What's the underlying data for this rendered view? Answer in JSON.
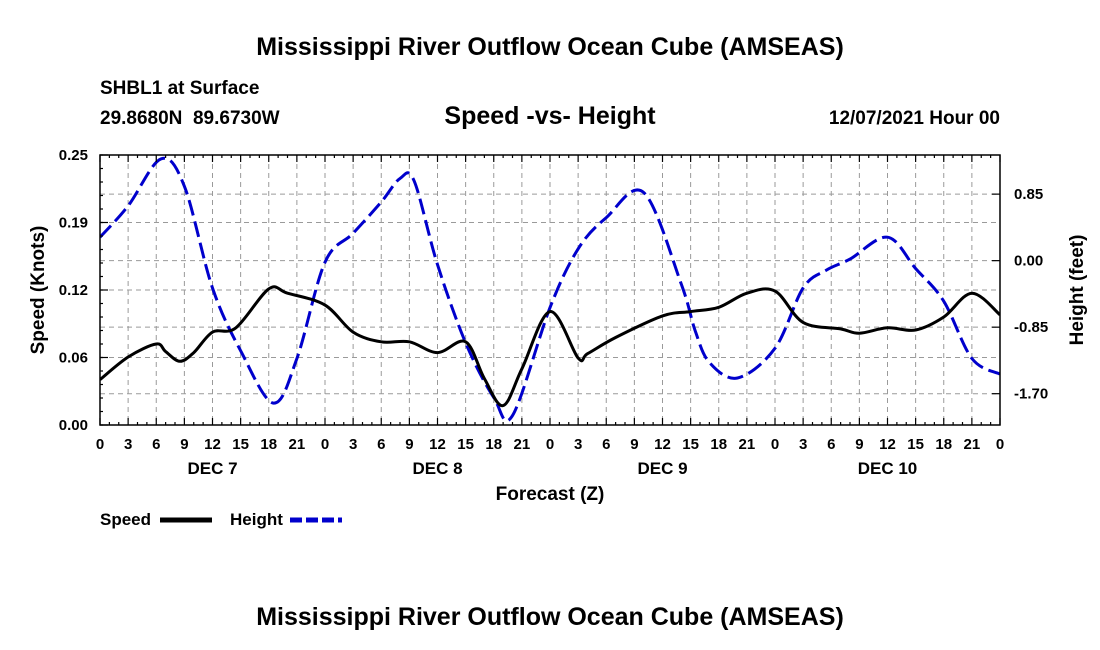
{
  "title": "Mississippi River Outflow Ocean Cube (AMSEAS)",
  "footer_title": "Mississippi River Outflow Ocean Cube (AMSEAS)",
  "station": "SHBL1 at Surface",
  "coords": "29.8680N  89.6730W",
  "plot_title": "Speed -vs- Height",
  "datetime": "12/07/2021 Hour 00",
  "chart_data": {
    "type": "line",
    "xlabel": "Forecast (Z)",
    "ylabel_left": "Speed (Knots)",
    "ylabel_right": "Height (feet)",
    "xlim": [
      0,
      96
    ],
    "ylim_left": [
      0,
      0.25
    ],
    "ylim_right": [
      -2.1,
      1.35
    ],
    "yticks_left": [
      "0.00",
      "0.06",
      "0.12",
      "0.19",
      "0.25"
    ],
    "yticks_left_values": [
      0,
      0.0625,
      0.125,
      0.1875,
      0.25
    ],
    "yticks_right": [
      "0.85",
      "0.00",
      "-0.85",
      "-1.70"
    ],
    "yticks_right_values": [
      0.85,
      0,
      -0.85,
      -1.7
    ],
    "xtick_labels": [
      "0",
      "3",
      "6",
      "9",
      "12",
      "15",
      "18",
      "21",
      "0",
      "3",
      "6",
      "9",
      "12",
      "15",
      "18",
      "21",
      "0",
      "3",
      "6",
      "9",
      "12",
      "15",
      "18",
      "21",
      "0",
      "3",
      "6",
      "9",
      "12",
      "15",
      "18",
      "21",
      "0"
    ],
    "day_labels": [
      {
        "label": "DEC 7",
        "hour": 12
      },
      {
        "label": "DEC 8",
        "hour": 36
      },
      {
        "label": "DEC 9",
        "hour": 60
      },
      {
        "label": "DEC 10",
        "hour": 84
      }
    ],
    "grid": true,
    "legend": [
      {
        "name": "Speed",
        "style": "solid",
        "color": "#000000"
      },
      {
        "name": "Height",
        "style": "dashed",
        "color": "#0000cc"
      }
    ],
    "series": [
      {
        "name": "Speed",
        "axis": "left",
        "color": "#000000",
        "style": "solid",
        "x": [
          0,
          3,
          6,
          7,
          8.5,
          10,
          12,
          14.5,
          18,
          20,
          24,
          27,
          30,
          33,
          36,
          39,
          41,
          43,
          45,
          48,
          51,
          52,
          55,
          60,
          63,
          66,
          69,
          72,
          75,
          79,
          81,
          84,
          87,
          90,
          93,
          96
        ],
        "values": [
          0.042,
          0.063,
          0.075,
          0.068,
          0.059,
          0.067,
          0.086,
          0.09,
          0.126,
          0.122,
          0.111,
          0.086,
          0.077,
          0.077,
          0.067,
          0.077,
          0.043,
          0.018,
          0.052,
          0.105,
          0.062,
          0.066,
          0.081,
          0.101,
          0.105,
          0.109,
          0.122,
          0.124,
          0.095,
          0.089,
          0.085,
          0.09,
          0.088,
          0.1,
          0.122,
          0.102
        ]
      },
      {
        "name": "Height",
        "axis": "right",
        "color": "#0000cc",
        "style": "dashed",
        "x": [
          0,
          3,
          6.5,
          9,
          12,
          15,
          18.5,
          21,
          24,
          27,
          30,
          32,
          33.5,
          36,
          39,
          42,
          44,
          48,
          51,
          54,
          58,
          62,
          63.5,
          65,
          68,
          72,
          75,
          77.5,
          80,
          84,
          87,
          90,
          93,
          96
        ],
        "values": [
          0.3,
          0.7,
          1.3,
          0.95,
          -0.35,
          -1.15,
          -1.82,
          -1.25,
          -0.02,
          0.35,
          0.75,
          1.05,
          1.02,
          -0.05,
          -1.05,
          -1.75,
          -1.98,
          -0.6,
          0.15,
          0.55,
          0.87,
          -0.3,
          -0.9,
          -1.3,
          -1.5,
          -1.12,
          -0.35,
          -0.12,
          0.02,
          0.3,
          -0.1,
          -0.52,
          -1.25,
          -1.45
        ]
      }
    ]
  }
}
